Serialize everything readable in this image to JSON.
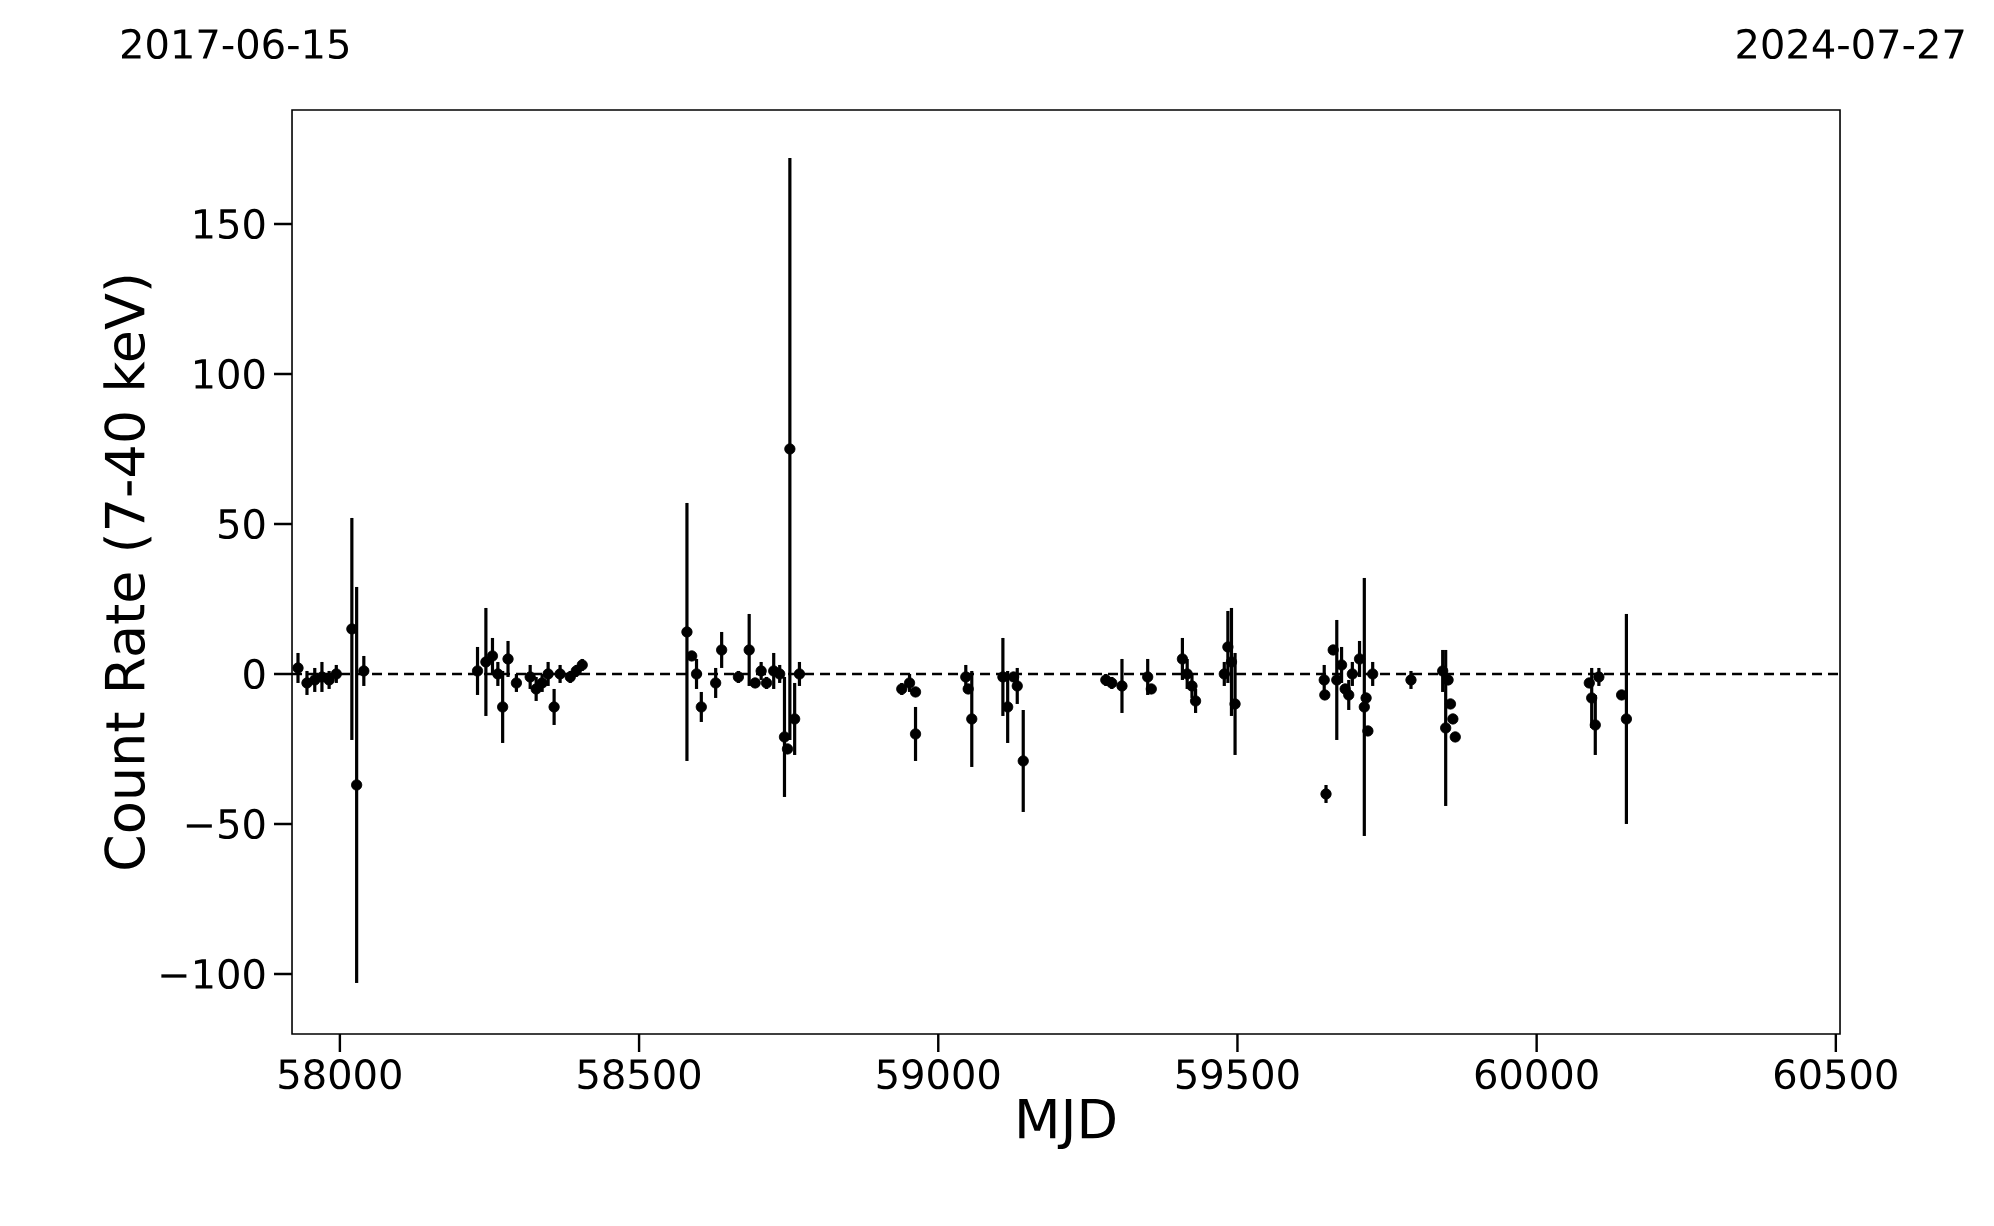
{
  "chart_data": {
    "type": "scatter",
    "xlabel": "MJD",
    "ylabel": "Count Rate (7-40 keV)",
    "annotations": [
      "2017-06-15",
      "2024-07-27"
    ],
    "color": "#000000",
    "marker": "circle",
    "x": [
      57930,
      57945,
      57958,
      57970,
      57982,
      57994,
      58020,
      58028,
      58040,
      58230,
      58244,
      58255,
      58264,
      58272,
      58281,
      58295,
      58318,
      58328,
      58338,
      58348,
      58358,
      58368,
      58385,
      58395,
      58405,
      58580,
      58588,
      58596,
      58604,
      58628,
      58638,
      58666,
      58684,
      58694,
      58704,
      58713,
      58725,
      58735,
      58752,
      58743,
      58748,
      58760,
      58768,
      58939,
      58952,
      58962,
      58962,
      59046,
      59050,
      59056,
      59108,
      59116,
      59126,
      59132,
      59142,
      59280,
      59290,
      59307,
      59350,
      59356,
      59408,
      59416,
      59424,
      59430,
      59478,
      59484,
      59490,
      59496,
      59645,
      59646,
      59648,
      59660,
      59666,
      59674,
      59680,
      59686,
      59692,
      59704,
      59712,
      59715,
      59718,
      59726,
      59790,
      59843,
      59848,
      59852,
      59856,
      59860,
      59864,
      60088,
      60092,
      60098,
      60104,
      60142,
      60150
    ],
    "values": [
      2,
      -3,
      -2,
      -1,
      -2,
      0,
      15,
      -37,
      1,
      1,
      4,
      6,
      0,
      -11,
      5,
      -3,
      -1,
      -5,
      -3,
      0,
      -11,
      0,
      -1,
      1,
      3,
      14,
      6,
      0,
      -11,
      -3,
      8,
      -1,
      8,
      -3,
      1,
      -3,
      1,
      0,
      75,
      -21,
      -25,
      -15,
      0,
      -5,
      -3,
      -6,
      -20,
      -1,
      -5,
      -15,
      -1,
      -11,
      -1,
      -4,
      -29,
      -2,
      -3,
      -4,
      -1,
      -5,
      5,
      0,
      -4,
      -9,
      0,
      9,
      4,
      -10,
      -2,
      -7,
      -40,
      8,
      -2,
      3,
      -5,
      -7,
      0,
      5,
      -11,
      -8,
      -19,
      0,
      -2,
      1,
      -18,
      -2,
      -10,
      -15,
      -21,
      -3,
      -8,
      -17,
      -1,
      -7,
      -15
    ],
    "errors": [
      5,
      4,
      4,
      5,
      3,
      3,
      37,
      66,
      5,
      8,
      18,
      6,
      4,
      12,
      6,
      3,
      4,
      4,
      3,
      4,
      6,
      3,
      2,
      2,
      2,
      43,
      null,
      5,
      5,
      5,
      6,
      2,
      12,
      null,
      3,
      2,
      6,
      3,
      97,
      20,
      null,
      12,
      4,
      2,
      3,
      null,
      9,
      4,
      null,
      16,
      13,
      12,
      null,
      6,
      17,
      2,
      2,
      9,
      6,
      null,
      7,
      5,
      4,
      4,
      4,
      12,
      18,
      17,
      5,
      null,
      3,
      null,
      20,
      6,
      null,
      5,
      4,
      6,
      43,
      null,
      null,
      4,
      3,
      7,
      26,
      null,
      null,
      null,
      null,
      null,
      10,
      10,
      3,
      null,
      35
    ],
    "xlim": [
      57920,
      60507
    ],
    "ylim": [
      -120,
      188
    ],
    "xticks": [
      58000,
      58500,
      59000,
      59500,
      60000,
      60500
    ],
    "yticks": [
      {
        "value": -100,
        "label": "−100"
      },
      {
        "value": -50,
        "label": "−50"
      },
      0,
      50,
      100,
      150
    ],
    "ref_lines": [
      {
        "axis": "y",
        "value": 0,
        "color": "#000000",
        "line_style": "dashed"
      }
    ]
  }
}
